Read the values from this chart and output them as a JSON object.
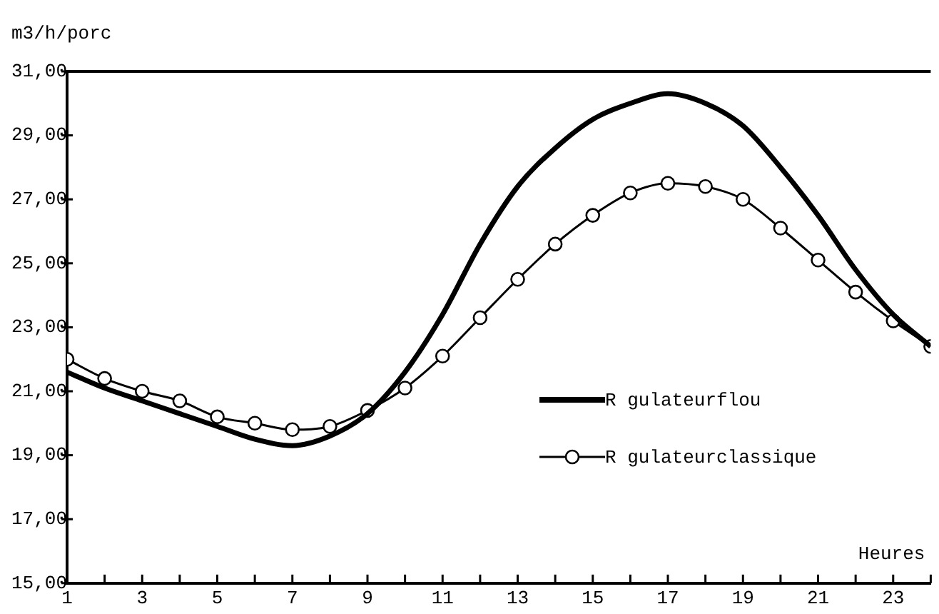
{
  "chart_data": {
    "type": "line",
    "xlabel": "Heures",
    "ylabel": "m3/h/porc",
    "x": [
      1,
      2,
      3,
      4,
      5,
      6,
      7,
      8,
      9,
      10,
      11,
      12,
      13,
      14,
      15,
      16,
      17,
      18,
      19,
      20,
      21,
      22,
      23,
      24
    ],
    "series": [
      {
        "name": "R gulateurflou",
        "color": "#000000",
        "marker": "none",
        "values": [
          21.6,
          21.1,
          20.7,
          20.3,
          19.9,
          19.5,
          19.3,
          19.6,
          20.3,
          21.6,
          23.4,
          25.6,
          27.4,
          28.6,
          29.5,
          30.0,
          30.3,
          30.0,
          29.3,
          28.0,
          26.5,
          24.8,
          23.4,
          22.4
        ]
      },
      {
        "name": "R gulateurclassique",
        "color": "#000000",
        "marker": "circle",
        "values": [
          22.0,
          21.4,
          21.0,
          20.7,
          20.2,
          20.0,
          19.8,
          19.9,
          20.4,
          21.1,
          22.1,
          23.3,
          24.5,
          25.6,
          26.5,
          27.2,
          27.5,
          27.4,
          27.0,
          26.1,
          25.1,
          24.1,
          23.2,
          22.4
        ]
      }
    ],
    "xlim": [
      1,
      24
    ],
    "xticks": [
      1,
      {
        "value": 2,
        "label": null
      },
      3,
      {
        "value": 4,
        "label": null
      },
      5,
      {
        "value": 6,
        "label": null
      },
      7,
      {
        "value": 8,
        "label": null
      },
      9,
      {
        "value": 10,
        "label": null
      },
      11,
      {
        "value": 12,
        "label": null
      },
      13,
      {
        "value": 14,
        "label": null
      },
      15,
      {
        "value": 16,
        "label": null
      },
      17,
      {
        "value": 18,
        "label": null
      },
      19,
      {
        "value": 20,
        "label": null
      },
      21,
      {
        "value": 22,
        "label": null
      },
      23,
      {
        "value": 24,
        "label": null
      }
    ],
    "ylim": [
      15,
      31
    ],
    "yticks": [
      {
        "value": 15,
        "label": "15,00"
      },
      {
        "value": 17,
        "label": "17,00"
      },
      {
        "value": 19,
        "label": "19,00"
      },
      {
        "value": 21,
        "label": "21,00"
      },
      {
        "value": 23,
        "label": "23,00"
      },
      {
        "value": 25,
        "label": "25,00"
      },
      {
        "value": 27,
        "label": "27,00"
      },
      {
        "value": 29,
        "label": "29,00"
      },
      {
        "value": 31,
        "label": "31,00"
      }
    ],
    "grid": false,
    "legend": "right",
    "line_style": "solid"
  }
}
